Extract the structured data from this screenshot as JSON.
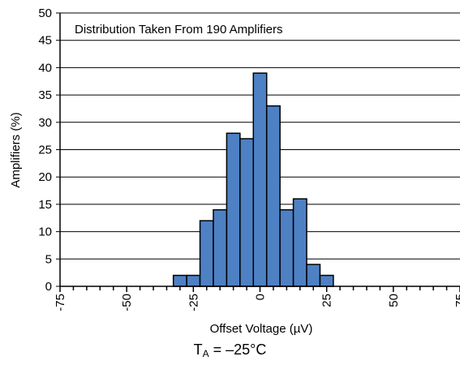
{
  "chart_data": {
    "type": "bar",
    "title": "Distribution Taken From 190 Amplifiers",
    "xlabel": "Offset Voltage (µV)",
    "ylabel": "Amplifiers (%)",
    "xlim": [
      -75,
      75
    ],
    "ylim": [
      0,
      50
    ],
    "bin_width": 5,
    "x_ticks": [
      -75,
      -50,
      -25,
      0,
      25,
      50,
      75
    ],
    "x_tick_labels": [
      "-75",
      "-50",
      "-25",
      "0",
      "25",
      "50",
      "75"
    ],
    "y_ticks": [
      0,
      5,
      10,
      15,
      20,
      25,
      30,
      35,
      40,
      45,
      50
    ],
    "y_tick_labels": [
      "0",
      "5",
      "10",
      "15",
      "20",
      "25",
      "30",
      "35",
      "40",
      "45",
      "50"
    ],
    "grid": "horizontal",
    "bins": [
      {
        "center": -30,
        "value": 2
      },
      {
        "center": -25,
        "value": 2
      },
      {
        "center": -20,
        "value": 12
      },
      {
        "center": -15,
        "value": 14
      },
      {
        "center": -10,
        "value": 28
      },
      {
        "center": -5,
        "value": 27
      },
      {
        "center": 0,
        "value": 39
      },
      {
        "center": 5,
        "value": 33
      },
      {
        "center": 10,
        "value": 14
      },
      {
        "center": 15,
        "value": 16
      },
      {
        "center": 20,
        "value": 4
      },
      {
        "center": 25,
        "value": 2
      }
    ]
  },
  "caption": {
    "prefix": "T",
    "subscript": "A",
    "suffix": " = –25°C"
  },
  "colors": {
    "bar_fill": "#4e80c4",
    "bar_stroke": "#000000",
    "grid": "#000000"
  }
}
